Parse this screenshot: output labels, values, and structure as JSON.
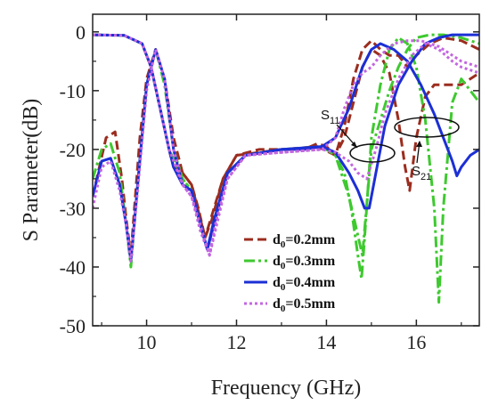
{
  "chart_data": {
    "type": "line",
    "title": "",
    "xlabel": "Frequency (GHz)",
    "ylabel": "S Parameter(dB)",
    "xlim": [
      8.8,
      17.4
    ],
    "ylim": [
      -50,
      3
    ],
    "xticks": [
      10,
      12,
      14,
      16
    ],
    "yticks": [
      0,
      -10,
      -20,
      -30,
      -40,
      -50
    ],
    "xtick_labels": [
      "10",
      "12",
      "14",
      "16"
    ],
    "ytick_labels": [
      "0",
      "-10",
      "-20",
      "-30",
      "-40",
      "-50"
    ],
    "grid": false,
    "legend_position": "lower-right",
    "series": [
      {
        "name": "d0=0.2mm",
        "name_base": "d",
        "name_sub": "0",
        "name_rest": "=0.2mm",
        "color": "#9b2d1f",
        "dash": "dash",
        "s11": [
          [
            8.8,
            -28
          ],
          [
            9.1,
            -18
          ],
          [
            9.3,
            -17
          ],
          [
            9.45,
            -25
          ],
          [
            9.55,
            -32
          ],
          [
            9.65,
            -38
          ],
          [
            9.75,
            -28
          ],
          [
            9.85,
            -18
          ],
          [
            10.0,
            -8
          ],
          [
            10.2,
            -3
          ],
          [
            10.4,
            -8
          ],
          [
            10.6,
            -18
          ],
          [
            10.8,
            -24
          ],
          [
            11.0,
            -26
          ],
          [
            11.15,
            -30
          ],
          [
            11.3,
            -35
          ],
          [
            11.45,
            -32
          ],
          [
            11.7,
            -25
          ],
          [
            12.0,
            -21
          ],
          [
            12.5,
            -20
          ],
          [
            13.0,
            -20
          ],
          [
            13.5,
            -20
          ],
          [
            13.8,
            -19
          ],
          [
            14.0,
            -19.5
          ],
          [
            14.2,
            -21
          ],
          [
            14.4,
            -18
          ],
          [
            14.6,
            -12
          ],
          [
            14.8,
            -6
          ],
          [
            15.0,
            -3
          ],
          [
            15.2,
            -4
          ],
          [
            15.4,
            -7
          ],
          [
            15.6,
            -15
          ],
          [
            15.75,
            -23
          ],
          [
            15.85,
            -27
          ],
          [
            16.0,
            -18
          ],
          [
            16.2,
            -11
          ],
          [
            16.4,
            -9
          ],
          [
            16.8,
            -9
          ],
          [
            17.0,
            -9
          ],
          [
            17.2,
            -8
          ],
          [
            17.4,
            -7
          ]
        ],
        "s21": [
          [
            8.8,
            -0.5
          ],
          [
            9.5,
            -0.6
          ],
          [
            9.9,
            -2
          ],
          [
            10.1,
            -6
          ],
          [
            10.3,
            -13
          ],
          [
            10.5,
            -20
          ],
          [
            10.6,
            -23
          ],
          [
            10.8,
            -24
          ],
          [
            11.0,
            -26
          ],
          [
            11.3,
            -35
          ],
          [
            11.7,
            -25
          ],
          [
            12.0,
            -21
          ],
          [
            13.0,
            -20
          ],
          [
            13.8,
            -19.5
          ],
          [
            14.2,
            -21
          ],
          [
            14.4,
            -16
          ],
          [
            14.6,
            -8
          ],
          [
            14.8,
            -3
          ],
          [
            15.0,
            -1.5
          ],
          [
            15.2,
            -3
          ],
          [
            15.4,
            -4
          ],
          [
            15.6,
            -4
          ],
          [
            15.8,
            -6
          ],
          [
            16.0,
            -4
          ],
          [
            16.3,
            -2
          ],
          [
            16.6,
            -1
          ],
          [
            17.0,
            -1.5
          ],
          [
            17.4,
            -3
          ]
        ]
      },
      {
        "name": "d0=0.3mm",
        "name_base": "d",
        "name_sub": "0",
        "name_rest": "=0.3mm",
        "color": "#3ec92f",
        "dash": "dashdot",
        "s11": [
          [
            8.8,
            -25
          ],
          [
            9.0,
            -20
          ],
          [
            9.2,
            -19
          ],
          [
            9.4,
            -24
          ],
          [
            9.55,
            -33
          ],
          [
            9.65,
            -40
          ],
          [
            9.8,
            -26
          ],
          [
            10.0,
            -9
          ],
          [
            10.2,
            -3
          ],
          [
            10.4,
            -9
          ],
          [
            10.6,
            -20
          ],
          [
            10.8,
            -25
          ],
          [
            11.0,
            -27
          ],
          [
            11.2,
            -33
          ],
          [
            11.35,
            -37
          ],
          [
            11.5,
            -32
          ],
          [
            11.8,
            -24
          ],
          [
            12.2,
            -21
          ],
          [
            13.0,
            -20
          ],
          [
            13.5,
            -20
          ],
          [
            13.9,
            -19.5
          ],
          [
            14.2,
            -21
          ],
          [
            14.4,
            -24
          ],
          [
            14.55,
            -30
          ],
          [
            14.7,
            -38
          ],
          [
            14.78,
            -42
          ],
          [
            14.85,
            -35
          ],
          [
            15.0,
            -18
          ],
          [
            15.2,
            -9
          ],
          [
            15.4,
            -3
          ],
          [
            15.6,
            -1
          ],
          [
            15.8,
            -2
          ],
          [
            16.0,
            -6
          ],
          [
            16.2,
            -15
          ],
          [
            16.4,
            -30
          ],
          [
            16.5,
            -46
          ],
          [
            16.6,
            -30
          ],
          [
            16.8,
            -12
          ],
          [
            17.0,
            -8
          ],
          [
            17.2,
            -10
          ],
          [
            17.4,
            -12
          ]
        ],
        "s21": [
          [
            8.8,
            -0.5
          ],
          [
            9.5,
            -0.6
          ],
          [
            9.9,
            -2
          ],
          [
            10.1,
            -6
          ],
          [
            10.3,
            -13
          ],
          [
            10.5,
            -20
          ],
          [
            10.8,
            -25
          ],
          [
            11.0,
            -27
          ],
          [
            11.35,
            -37
          ],
          [
            11.8,
            -24
          ],
          [
            12.2,
            -21
          ],
          [
            13.0,
            -20
          ],
          [
            13.9,
            -19.5
          ],
          [
            14.2,
            -21
          ],
          [
            14.5,
            -28
          ],
          [
            14.8,
            -38
          ],
          [
            15.0,
            -20
          ],
          [
            15.2,
            -15
          ],
          [
            15.4,
            -10
          ],
          [
            15.6,
            -6
          ],
          [
            15.8,
            -3
          ],
          [
            16.0,
            -1
          ],
          [
            16.3,
            -0.5
          ],
          [
            16.6,
            -0.5
          ],
          [
            17.0,
            -1
          ],
          [
            17.4,
            -2
          ]
        ]
      },
      {
        "name": "d0=0.4mm",
        "name_base": "d",
        "name_sub": "0",
        "name_rest": "=0.4mm",
        "color": "#1c2fd6",
        "dash": "solid",
        "s11": [
          [
            8.8,
            -28
          ],
          [
            9.0,
            -22
          ],
          [
            9.2,
            -21.5
          ],
          [
            9.4,
            -26
          ],
          [
            9.55,
            -33
          ],
          [
            9.65,
            -39
          ],
          [
            9.8,
            -26
          ],
          [
            10.0,
            -9
          ],
          [
            10.2,
            -3
          ],
          [
            10.4,
            -8
          ],
          [
            10.6,
            -20
          ],
          [
            10.8,
            -26
          ],
          [
            11.0,
            -27
          ],
          [
            11.2,
            -33
          ],
          [
            11.35,
            -37
          ],
          [
            11.5,
            -32
          ],
          [
            11.8,
            -24
          ],
          [
            12.2,
            -21
          ],
          [
            13.0,
            -20
          ],
          [
            13.5,
            -20
          ],
          [
            13.9,
            -19.5
          ],
          [
            14.2,
            -20.5
          ],
          [
            14.5,
            -24
          ],
          [
            14.7,
            -27
          ],
          [
            14.85,
            -30
          ],
          [
            14.95,
            -30
          ],
          [
            15.1,
            -24
          ],
          [
            15.3,
            -16
          ],
          [
            15.6,
            -9
          ],
          [
            15.9,
            -5
          ],
          [
            16.2,
            -2
          ],
          [
            16.5,
            -1
          ],
          [
            16.8,
            -0.5
          ],
          [
            17.0,
            -0.5
          ],
          [
            17.4,
            -0.5
          ]
        ],
        "s21": [
          [
            8.8,
            -0.5
          ],
          [
            9.5,
            -0.6
          ],
          [
            9.9,
            -2
          ],
          [
            10.1,
            -6
          ],
          [
            10.3,
            -13
          ],
          [
            10.5,
            -20
          ],
          [
            10.6,
            -23
          ],
          [
            10.8,
            -26
          ],
          [
            11.0,
            -27
          ],
          [
            11.35,
            -37
          ],
          [
            11.8,
            -24
          ],
          [
            12.2,
            -21
          ],
          [
            13.0,
            -20
          ],
          [
            13.9,
            -19.5
          ],
          [
            14.2,
            -18
          ],
          [
            14.5,
            -13
          ],
          [
            14.8,
            -6
          ],
          [
            15.0,
            -3
          ],
          [
            15.2,
            -2
          ],
          [
            15.5,
            -3
          ],
          [
            15.8,
            -5
          ],
          [
            16.1,
            -9
          ],
          [
            16.4,
            -14
          ],
          [
            16.6,
            -18
          ],
          [
            16.8,
            -22
          ],
          [
            16.9,
            -24.5
          ],
          [
            17.0,
            -23
          ],
          [
            17.2,
            -21
          ],
          [
            17.4,
            -20
          ]
        ]
      },
      {
        "name": "d0=0.5mm",
        "name_base": "d",
        "name_sub": "0",
        "name_rest": "=0.5mm",
        "color": "#c366e0",
        "dash": "dot",
        "s11": [
          [
            8.8,
            -30
          ],
          [
            9.0,
            -23
          ],
          [
            9.2,
            -22
          ],
          [
            9.4,
            -27
          ],
          [
            9.55,
            -33
          ],
          [
            9.65,
            -39
          ],
          [
            9.8,
            -27
          ],
          [
            10.0,
            -10
          ],
          [
            10.2,
            -3
          ],
          [
            10.4,
            -8
          ],
          [
            10.6,
            -20
          ],
          [
            10.8,
            -26
          ],
          [
            11.0,
            -28
          ],
          [
            11.2,
            -34
          ],
          [
            11.4,
            -38
          ],
          [
            11.55,
            -32
          ],
          [
            11.8,
            -25
          ],
          [
            12.2,
            -21
          ],
          [
            13.0,
            -20.5
          ],
          [
            13.9,
            -20
          ],
          [
            14.2,
            -20.5
          ],
          [
            14.5,
            -22
          ],
          [
            14.7,
            -24
          ],
          [
            14.9,
            -25
          ],
          [
            15.1,
            -20
          ],
          [
            15.3,
            -14
          ],
          [
            15.6,
            -8
          ],
          [
            15.9,
            -4
          ],
          [
            16.2,
            -2
          ],
          [
            16.5,
            -3
          ],
          [
            16.8,
            -5
          ],
          [
            17.0,
            -6
          ],
          [
            17.4,
            -7
          ]
        ],
        "s21": [
          [
            8.8,
            -0.5
          ],
          [
            9.5,
            -0.6
          ],
          [
            9.9,
            -2
          ],
          [
            10.1,
            -6
          ],
          [
            10.3,
            -13
          ],
          [
            10.5,
            -20
          ],
          [
            10.8,
            -26
          ],
          [
            11.0,
            -28
          ],
          [
            11.4,
            -38
          ],
          [
            11.8,
            -25
          ],
          [
            12.2,
            -21
          ],
          [
            13.0,
            -20.5
          ],
          [
            13.9,
            -20
          ],
          [
            14.2,
            -18
          ],
          [
            14.4,
            -13
          ],
          [
            14.6,
            -9
          ],
          [
            14.8,
            -7
          ],
          [
            15.0,
            -6
          ],
          [
            15.2,
            -4
          ],
          [
            15.5,
            -2
          ],
          [
            15.8,
            -1.5
          ],
          [
            16.1,
            -1.5
          ],
          [
            16.5,
            -2.5
          ],
          [
            16.8,
            -4
          ],
          [
            17.0,
            -5
          ],
          [
            17.4,
            -6
          ]
        ]
      }
    ],
    "annotations": [
      {
        "text_base": "S",
        "text_sub": "11"
      },
      {
        "text_base": "S",
        "text_sub": "21"
      }
    ]
  }
}
